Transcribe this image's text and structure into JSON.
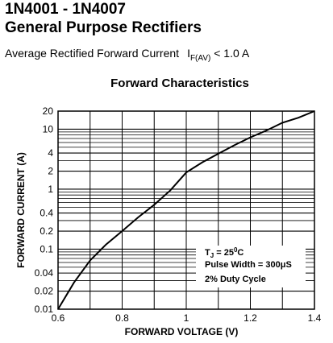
{
  "header": {
    "part_range": "1N4001 - 1N4007",
    "subtitle": "General Purpose Rectifiers",
    "spec_text": "Average Rectified Forward Current",
    "spec_symbol": "I",
    "spec_subscript": "F(AV)",
    "spec_value": "< 1.0 A"
  },
  "chart_data": {
    "type": "line",
    "title": "Forward Characteristics",
    "xlabel": "FORWARD VOLTAGE (V)",
    "ylabel": "FORWARD CURRENT (A)",
    "xlim": [
      0.6,
      1.4
    ],
    "ylim": [
      0.01,
      20
    ],
    "y_scale": "log",
    "x_ticks": [
      0.6,
      0.8,
      1.0,
      1.2,
      1.4
    ],
    "x_tick_labels": [
      "0.6",
      "0.8",
      "1",
      "1.2",
      "1.4"
    ],
    "y_ticks": [
      0.01,
      0.02,
      0.04,
      0.1,
      0.2,
      0.4,
      1,
      2,
      4,
      10,
      20
    ],
    "y_tick_labels": [
      "0.01",
      "0.02",
      "0.04",
      "0.1",
      "0.2",
      "0.4",
      "1",
      "2",
      "4",
      "10",
      "20"
    ],
    "grid": true,
    "series": [
      {
        "x": [
          0.6,
          0.65,
          0.7,
          0.75,
          0.8,
          0.85,
          0.9,
          0.95,
          1.0,
          1.05,
          1.1,
          1.15,
          1.2,
          1.25,
          1.3,
          1.35,
          1.4
        ],
        "values": [
          0.01,
          0.028,
          0.065,
          0.12,
          0.2,
          0.34,
          0.55,
          0.95,
          1.9,
          2.8,
          3.9,
          5.4,
          7.3,
          9.5,
          12.8,
          15.5,
          20
        ]
      }
    ],
    "annotations": {
      "line1_main": "T",
      "line1_sub": "J",
      "line1_rest": " = 25",
      "line1_sup": "0",
      "line1_unit": "C",
      "line2": "Pulse Width = 300μS",
      "line3": "2% Duty Cycle"
    }
  }
}
